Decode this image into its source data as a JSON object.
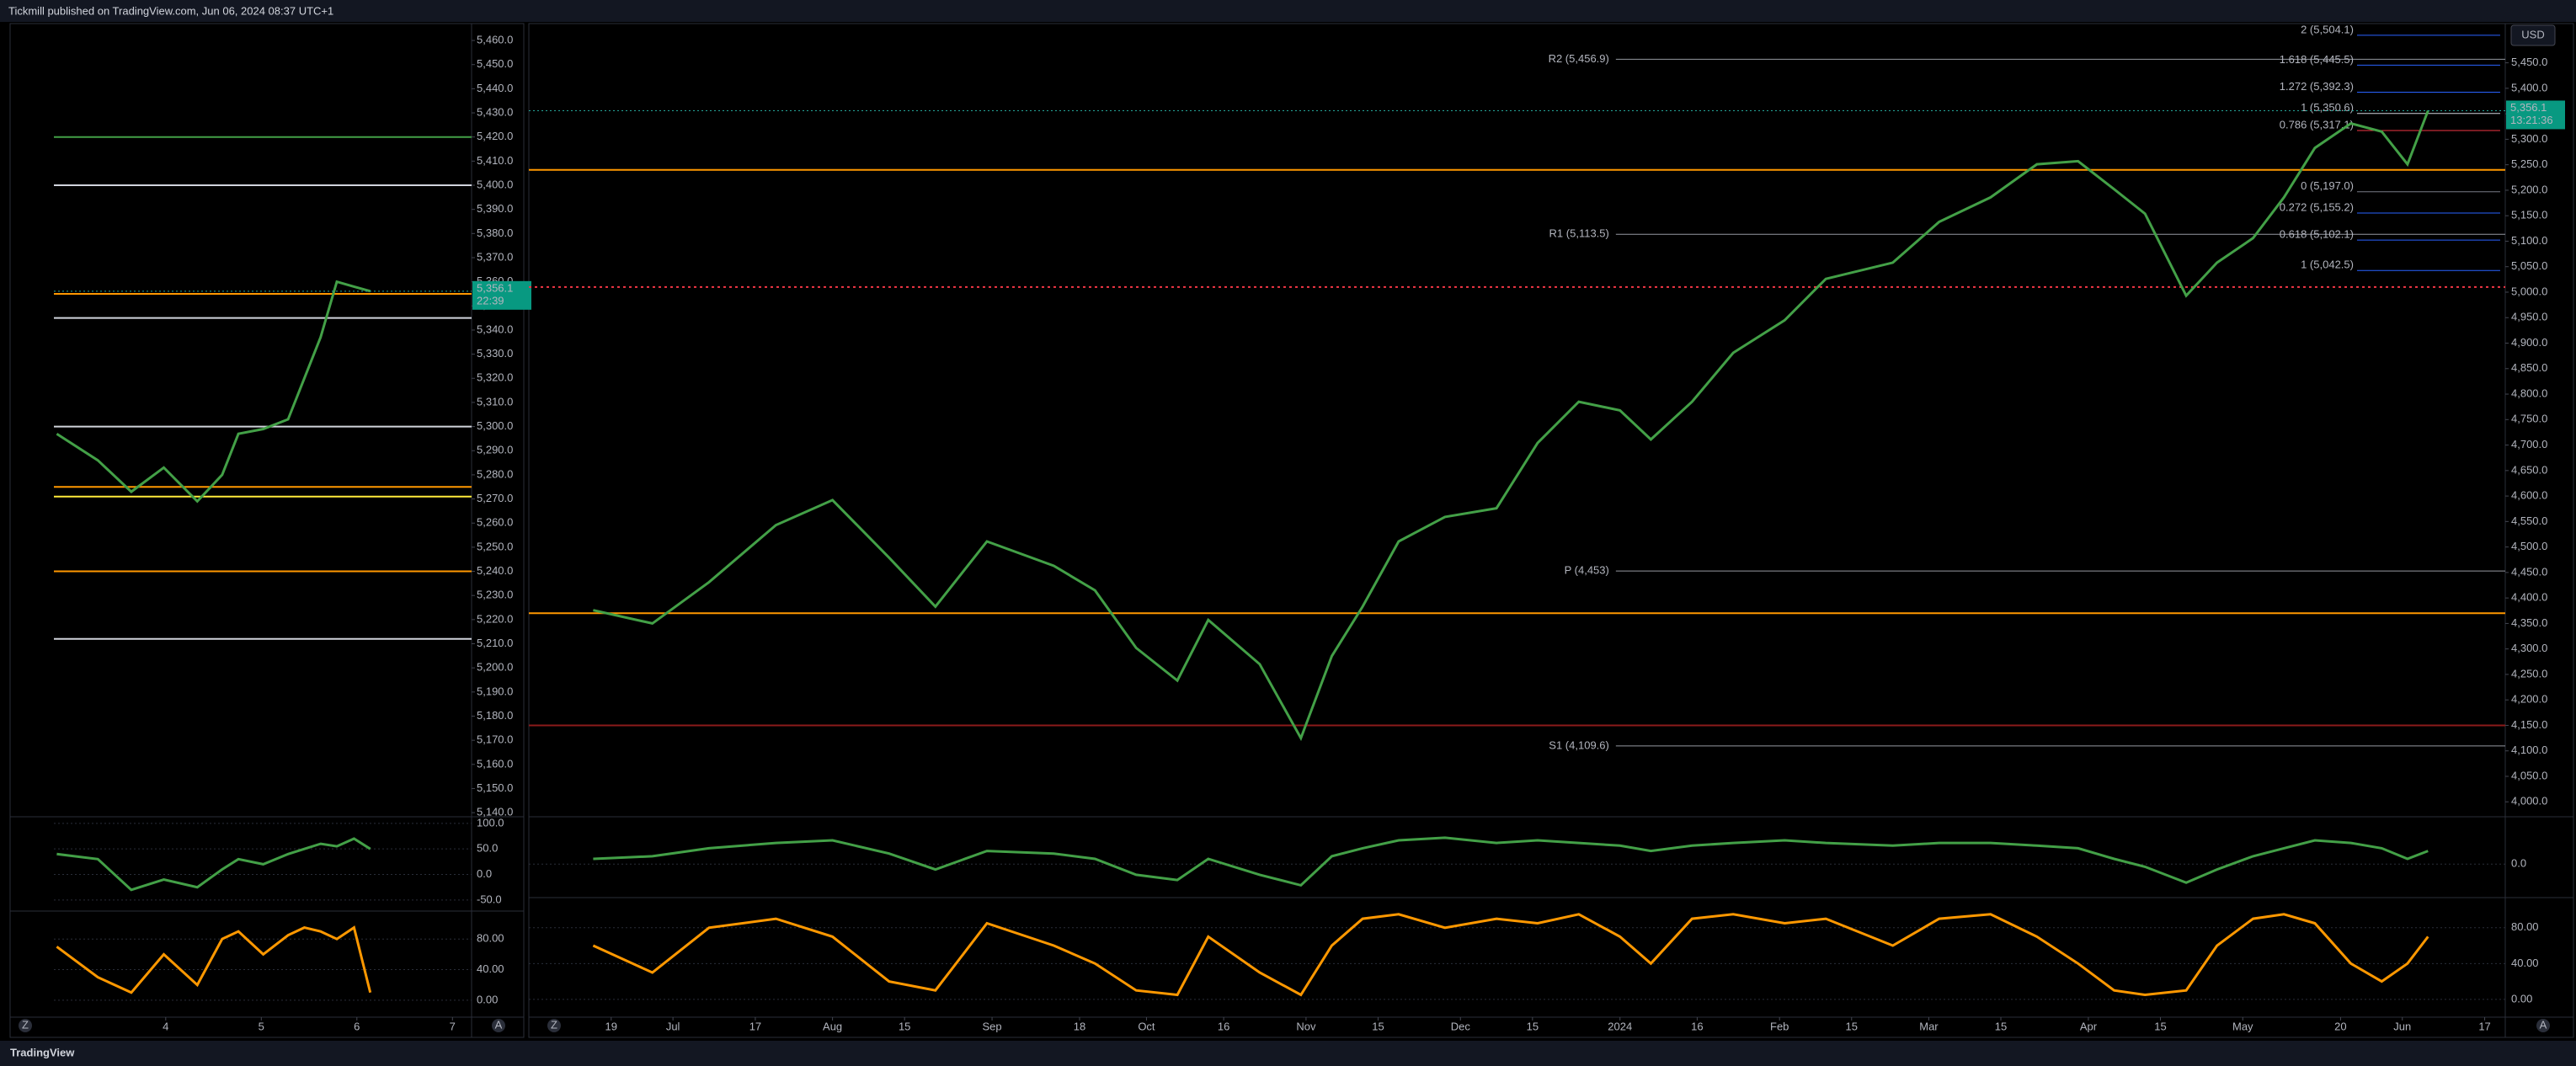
{
  "header": {
    "publisher": "Tickmill published on TradingView.com, Jun 06, 2024 08:37 UTC+1",
    "brand": "TradingView"
  },
  "ui": {
    "zoom": "Z",
    "auto": "A",
    "currency": "USD"
  },
  "chart_data": [
    {
      "type": "line",
      "color": "#43a047",
      "grid": false,
      "x": [
        2.86,
        3.29,
        3.64,
        3.98,
        4.33,
        4.59,
        4.76,
        5.02,
        5.28,
        5.45,
        5.62,
        5.79,
        5.97,
        6.14
      ],
      "values": [
        5297,
        5286,
        5273,
        5283,
        5269,
        5280,
        5297,
        5299,
        5303,
        5320,
        5337,
        5360,
        5358,
        5356.1
      ],
      "xlim": [
        2.83,
        7.2
      ],
      "xticks": [
        4,
        5,
        6,
        7
      ],
      "ylim": [
        5139,
        5467
      ],
      "yticks": [
        {
          "value": 5140,
          "label": "5,140.0"
        },
        {
          "value": 5150,
          "label": "5,150.0"
        },
        {
          "value": 5160,
          "label": "5,160.0"
        },
        {
          "value": 5170,
          "label": "5,170.0"
        },
        {
          "value": 5180,
          "label": "5,180.0"
        },
        {
          "value": 5190,
          "label": "5,190.0"
        },
        {
          "value": 5200,
          "label": "5,200.0"
        },
        {
          "value": 5210,
          "label": "5,210.0"
        },
        {
          "value": 5220,
          "label": "5,220.0"
        },
        {
          "value": 5230,
          "label": "5,230.0"
        },
        {
          "value": 5240,
          "label": "5,240.0"
        },
        {
          "value": 5250,
          "label": "5,250.0"
        },
        {
          "value": 5260,
          "label": "5,260.0"
        },
        {
          "value": 5270,
          "label": "5,270.0"
        },
        {
          "value": 5280,
          "label": "5,280.0"
        },
        {
          "value": 5290,
          "label": "5,290.0"
        },
        {
          "value": 5300,
          "label": "5,300.0"
        },
        {
          "value": 5310,
          "label": "5,310.0"
        },
        {
          "value": 5320,
          "label": "5,320.0"
        },
        {
          "value": 5330,
          "label": "5,330.0"
        },
        {
          "value": 5340,
          "label": "5,340.0"
        },
        {
          "value": 5350,
          "label": "5,350.0"
        },
        {
          "value": 5360,
          "label": "5,360.0"
        },
        {
          "value": 5370,
          "label": "5,370.0"
        },
        {
          "value": 5380,
          "label": "5,380.0"
        },
        {
          "value": 5390,
          "label": "5,390.0"
        },
        {
          "value": 5400,
          "label": "5,400.0"
        },
        {
          "value": 5410,
          "label": "5,410.0"
        },
        {
          "value": 5420,
          "label": "5,420.0"
        },
        {
          "value": 5430,
          "label": "5,430.0"
        },
        {
          "value": 5440,
          "label": "5,440.0"
        },
        {
          "value": 5450,
          "label": "5,450.0"
        },
        {
          "value": 5460,
          "label": "5,460.0"
        }
      ],
      "levels": [
        {
          "value": 5420,
          "color": "#43a047"
        },
        {
          "value": 5400,
          "color": "#d1d4dc"
        },
        {
          "value": 5355,
          "color": "#ff9800"
        },
        {
          "value": 5345,
          "color": "#d1d4dc"
        },
        {
          "value": 5300,
          "color": "#d1d4dc"
        },
        {
          "value": 5275,
          "color": "#ff9800"
        },
        {
          "value": 5271,
          "color": "#ffeb3b"
        },
        {
          "value": 5240,
          "color": "#ff9800"
        },
        {
          "value": 5212,
          "color": "#d1d4dc"
        }
      ],
      "last_price": {
        "value": 5356.1,
        "label": "5,356.1",
        "countdown": "22:39"
      },
      "indicators": [
        {
          "color": "#43a047",
          "ylim": [
            -65,
            103
          ],
          "yticks": [
            {
              "value": 100,
              "label": "100.0"
            },
            {
              "value": 50,
              "label": "50.0"
            },
            {
              "value": 0,
              "label": "0.0"
            },
            {
              "value": -50,
              "label": "-50.0"
            }
          ],
          "values": [
            40,
            30,
            -30,
            -10,
            -25,
            10,
            30,
            20,
            40,
            50,
            60,
            55,
            70,
            50
          ]
        },
        {
          "color": "#ff9800",
          "ylim": [
            -20,
            110
          ],
          "yticks": [
            {
              "value": 80,
              "label": "80.00"
            },
            {
              "value": 40,
              "label": "40.00"
            },
            {
              "value": 0,
              "label": "0.00"
            }
          ],
          "values": [
            70,
            30,
            10,
            60,
            20,
            80,
            90,
            60,
            85,
            95,
            90,
            80,
            95,
            10
          ]
        }
      ]
    },
    {
      "type": "line",
      "color": "#43a047",
      "grid": false,
      "x": [
        -3.5,
        8,
        19,
        32,
        43,
        54,
        63,
        73,
        86,
        94,
        102,
        110,
        116,
        126,
        134,
        140,
        146,
        153,
        162,
        172,
        180,
        188,
        196,
        202,
        210,
        218,
        228,
        236,
        249,
        258,
        268,
        277,
        285,
        292,
        298,
        306,
        312,
        319,
        325,
        331,
        338,
        344,
        349,
        353
      ],
      "values": [
        4376,
        4350,
        4431,
        4543,
        4592,
        4479,
        4383,
        4511,
        4463,
        4415,
        4302,
        4238,
        4357,
        4270,
        4125,
        4286,
        4383,
        4511,
        4559,
        4576,
        4704,
        4785,
        4768,
        4711,
        4785,
        4881,
        4945,
        5026,
        5058,
        5138,
        5186,
        5251,
        5257,
        5202,
        5154,
        4993,
        5058,
        5106,
        5186,
        5283,
        5331,
        5315,
        5251,
        5356.1
      ],
      "xlim": [
        -16,
        368
      ],
      "xticks": [
        {
          "value": 0,
          "label": "19"
        },
        {
          "value": 12,
          "label": "Jul"
        },
        {
          "value": 28,
          "label": "17"
        },
        {
          "value": 43,
          "label": "Aug"
        },
        {
          "value": 57,
          "label": "15"
        },
        {
          "value": 74,
          "label": "Sep"
        },
        {
          "value": 91,
          "label": "18"
        },
        {
          "value": 104,
          "label": "Oct"
        },
        {
          "value": 119,
          "label": "16"
        },
        {
          "value": 135,
          "label": "Nov"
        },
        {
          "value": 149,
          "label": "15"
        },
        {
          "value": 165,
          "label": "Dec"
        },
        {
          "value": 179,
          "label": "15"
        },
        {
          "value": 196,
          "label": "2024"
        },
        {
          "value": 211,
          "label": "16"
        },
        {
          "value": 227,
          "label": "Feb"
        },
        {
          "value": 241,
          "label": "15"
        },
        {
          "value": 256,
          "label": "Mar"
        },
        {
          "value": 270,
          "label": "15"
        },
        {
          "value": 287,
          "label": "Apr"
        },
        {
          "value": 301,
          "label": "15"
        },
        {
          "value": 317,
          "label": "May"
        },
        {
          "value": 336,
          "label": "20"
        },
        {
          "value": 348,
          "label": "Jun"
        },
        {
          "value": 364,
          "label": "17"
        }
      ],
      "ylim": [
        3974,
        5527
      ],
      "yticks": [
        {
          "value": 4000,
          "label": "4,000.0"
        },
        {
          "value": 4050,
          "label": "4,050.0"
        },
        {
          "value": 4100,
          "label": "4,100.0"
        },
        {
          "value": 4150,
          "label": "4,150.0"
        },
        {
          "value": 4200,
          "label": "4,200.0"
        },
        {
          "value": 4250,
          "label": "4,250.0"
        },
        {
          "value": 4300,
          "label": "4,300.0"
        },
        {
          "value": 4350,
          "label": "4,350.0"
        },
        {
          "value": 4400,
          "label": "4,400.0"
        },
        {
          "value": 4450,
          "label": "4,450.0"
        },
        {
          "value": 4500,
          "label": "4,500.0"
        },
        {
          "value": 4550,
          "label": "4,550.0"
        },
        {
          "value": 4600,
          "label": "4,600.0"
        },
        {
          "value": 4650,
          "label": "4,650.0"
        },
        {
          "value": 4700,
          "label": "4,700.0"
        },
        {
          "value": 4750,
          "label": "4,750.0"
        },
        {
          "value": 4800,
          "label": "4,800.0"
        },
        {
          "value": 4850,
          "label": "4,850.0"
        },
        {
          "value": 4900,
          "label": "4,900.0"
        },
        {
          "value": 4950,
          "label": "4,950.0"
        },
        {
          "value": 5000,
          "label": "5,000.0"
        },
        {
          "value": 5050,
          "label": "5,050.0"
        },
        {
          "value": 5100,
          "label": "5,100.0"
        },
        {
          "value": 5150,
          "label": "5,150.0"
        },
        {
          "value": 5200,
          "label": "5,200.0"
        },
        {
          "value": 5250,
          "label": "5,250.0"
        },
        {
          "value": 5300,
          "label": "5,300.0"
        },
        {
          "value": 5350,
          "label": "5,350.0"
        },
        {
          "value": 5400,
          "label": "5,400.0"
        },
        {
          "value": 5450,
          "label": "5,450.0"
        }
      ],
      "levels": [
        {
          "value": 4370,
          "color": "#ff9800"
        },
        {
          "value": 5010,
          "color": "#f23645",
          "style": "dotted"
        },
        {
          "value": 4150,
          "color": "#8b1a1a"
        },
        {
          "value": 5240,
          "color": "#ff9800"
        }
      ],
      "pivots": [
        {
          "label": "R2 (5,456.9)",
          "value": 5456.9
        },
        {
          "label": "R1 (5,113.5)",
          "value": 5113.5
        },
        {
          "label": "P (4,453)",
          "value": 4453
        },
        {
          "label": "S1 (4,109.6)",
          "value": 4109.6
        }
      ],
      "fib_levels": [
        {
          "label": "2 (5,504.1)",
          "value": 5504.1,
          "color": "#2962ff"
        },
        {
          "label": "1.618 (5,445.5)",
          "value": 5445.5,
          "color": "#2962ff"
        },
        {
          "label": "1.272 (5,392.3)",
          "value": 5392.3,
          "color": "#2962ff"
        },
        {
          "label": "1 (5,350.6)",
          "value": 5350.6,
          "color": "#d1d4dc"
        },
        {
          "label": "0.786 (5,317.1)",
          "value": 5317.1,
          "color": "#f23645"
        },
        {
          "label": "0 (5,197.0)",
          "value": 5197.0,
          "color": "#787b86"
        },
        {
          "label": "0.272 (5,155.2)",
          "value": 5155.2,
          "color": "#2962ff"
        },
        {
          "label": "0.618 (5,102.1)",
          "value": 5102.1,
          "color": "#2962ff"
        },
        {
          "label": "1 (5,042.5)",
          "value": 5042.5,
          "color": "#2962ff"
        }
      ],
      "last_price": {
        "value": 5356.1,
        "label": "5,356.1",
        "countdown": "13:21:36"
      },
      "indicators": [
        {
          "color": "#43a047",
          "ylim": [
            -60,
            80
          ],
          "yticks": [
            {
              "value": 0,
              "label": "0.0"
            }
          ],
          "values": [
            10,
            15,
            30,
            40,
            45,
            20,
            -10,
            25,
            20,
            10,
            -20,
            -30,
            10,
            -20,
            -40,
            15,
            30,
            45,
            50,
            40,
            45,
            40,
            35,
            25,
            35,
            40,
            45,
            40,
            35,
            40,
            40,
            35,
            30,
            10,
            -5,
            -35,
            -10,
            15,
            30,
            45,
            40,
            30,
            10,
            25
          ]
        },
        {
          "color": "#ff9800",
          "ylim": [
            -18,
            108
          ],
          "yticks": [
            {
              "value": 80,
              "label": "80.00"
            },
            {
              "value": 40,
              "label": "40.00"
            },
            {
              "value": 0,
              "label": "0.00"
            }
          ],
          "values": [
            60,
            30,
            80,
            90,
            70,
            20,
            10,
            85,
            60,
            40,
            10,
            5,
            70,
            30,
            5,
            60,
            90,
            95,
            80,
            90,
            85,
            95,
            70,
            40,
            90,
            95,
            85,
            90,
            60,
            90,
            95,
            70,
            40,
            10,
            5,
            10,
            60,
            90,
            95,
            85,
            40,
            20,
            40,
            70
          ]
        }
      ]
    }
  ]
}
